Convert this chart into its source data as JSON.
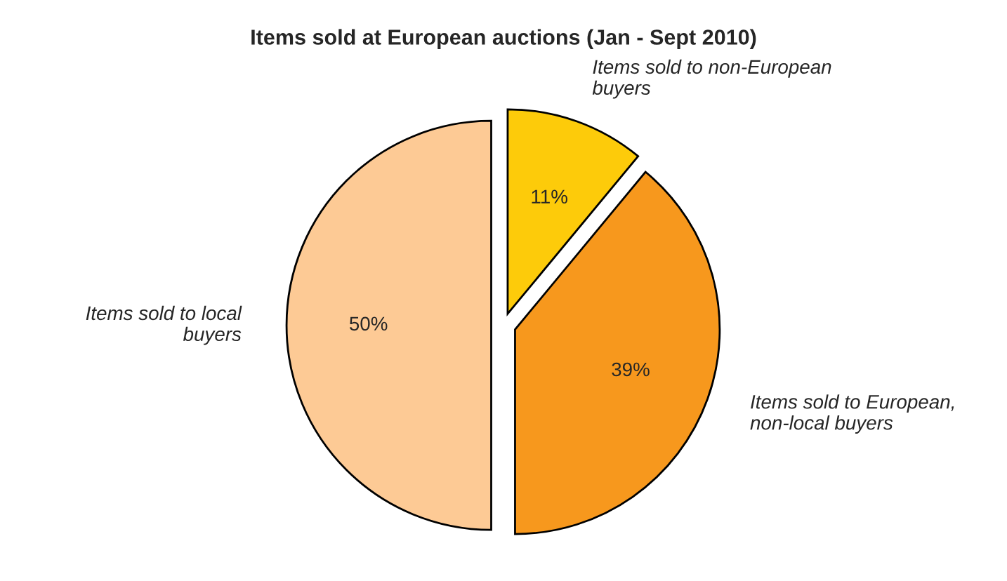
{
  "chart_data": {
    "type": "pie",
    "title": "Items sold at European auctions (Jan - Sept 2010)",
    "categories": [
      "Items sold to non-European\nbuyers",
      "Items sold to European,\nnon-local buyers",
      "Items sold to local\nbuyers"
    ],
    "values": [
      11,
      39,
      50
    ],
    "value_labels": [
      "11%",
      "39%",
      "50%"
    ],
    "colors": [
      "#fdcb0a",
      "#f7981d",
      "#fdca95"
    ],
    "legend": false
  }
}
